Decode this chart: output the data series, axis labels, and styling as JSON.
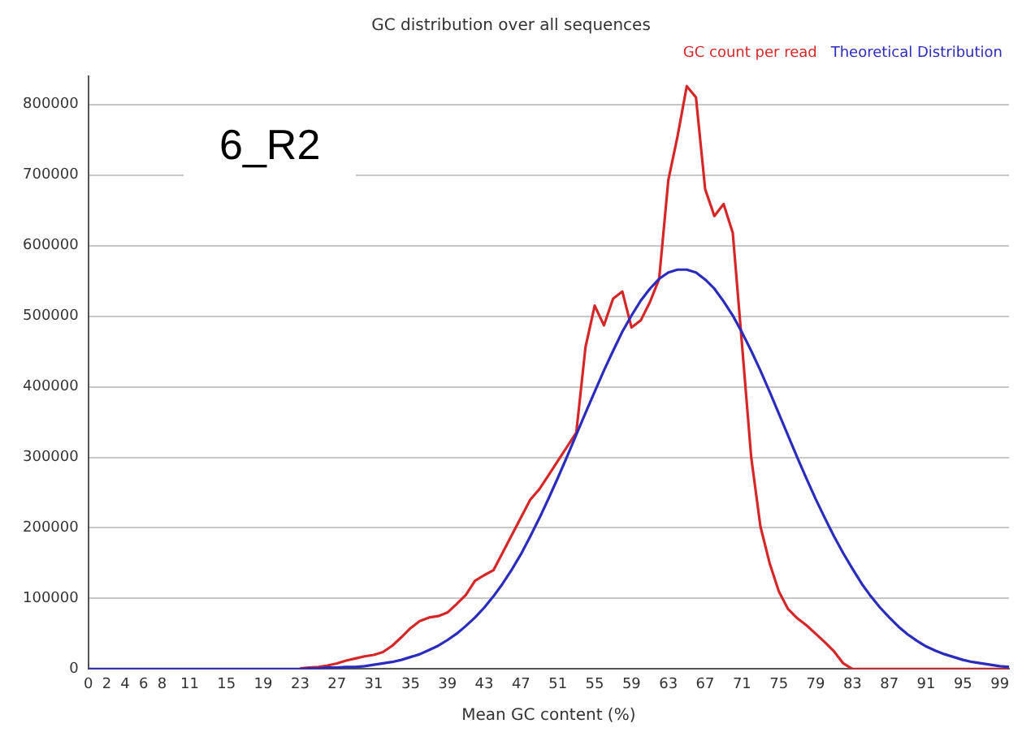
{
  "chart_data": {
    "type": "line",
    "title": "GC distribution over all sequences",
    "xlabel": "Mean GC content (%)",
    "categories": [
      "0",
      null,
      "2",
      null,
      "4",
      null,
      "6",
      null,
      "8",
      null,
      null,
      "11",
      null,
      null,
      null,
      "15",
      null,
      null,
      null,
      "19",
      null,
      null,
      null,
      "23",
      null,
      null,
      null,
      "27",
      null,
      null,
      null,
      "31",
      null,
      null,
      null,
      "35",
      null,
      null,
      null,
      "39",
      null,
      null,
      null,
      "43",
      null,
      null,
      null,
      "47",
      null,
      null,
      null,
      "51",
      null,
      null,
      null,
      "55",
      null,
      null,
      null,
      "59",
      null,
      null,
      null,
      "63",
      null,
      null,
      null,
      "67",
      null,
      null,
      null,
      "71",
      null,
      null,
      null,
      "75",
      null,
      null,
      null,
      "79",
      null,
      null,
      null,
      "83",
      null,
      null,
      null,
      "87",
      null,
      null,
      null,
      "91",
      null,
      null,
      null,
      "95",
      null,
      null,
      null,
      "99",
      null
    ],
    "series": [
      {
        "name": "GC count per read",
        "color": "#d62728",
        "values": [
          null,
          null,
          null,
          null,
          null,
          null,
          null,
          null,
          null,
          null,
          null,
          null,
          null,
          null,
          null,
          null,
          null,
          null,
          null,
          null,
          null,
          null,
          null,
          1000,
          2000,
          3000,
          5000,
          8000,
          12000,
          15000,
          18000,
          20000,
          24000,
          33000,
          45000,
          58000,
          68000,
          73000,
          75000,
          80000,
          92000,
          105000,
          125000,
          133000,
          140000,
          165000,
          190000,
          215000,
          240000,
          255000,
          275000,
          295000,
          315000,
          335000,
          456000,
          515000,
          487000,
          525000,
          535000,
          484000,
          494000,
          520000,
          553000,
          693000,
          755000,
          826000,
          810000,
          680000,
          642000,
          659000,
          618000,
          460000,
          300000,
          202000,
          150000,
          110000,
          85000,
          72000,
          62000,
          50000,
          38000,
          25000,
          8000,
          0,
          0,
          0,
          0,
          0,
          0,
          0,
          0,
          0,
          0,
          0,
          0,
          0,
          0,
          0,
          0,
          0,
          0
        ]
      },
      {
        "name": "Theoretical Distribution",
        "color": "#2b2bbd",
        "values": [
          0,
          0,
          0,
          0,
          0,
          0,
          0,
          0,
          0,
          0,
          0,
          0,
          0,
          0,
          0,
          0,
          0,
          0,
          0,
          0,
          0,
          0,
          0,
          0,
          1000,
          1000,
          2000,
          2000,
          3000,
          3000,
          4000,
          6000,
          8000,
          10000,
          13000,
          17000,
          21000,
          27000,
          33000,
          41000,
          50000,
          61000,
          73000,
          87000,
          103000,
          121000,
          141000,
          163000,
          188000,
          214000,
          242000,
          271000,
          301000,
          332000,
          363000,
          393000,
          423000,
          451000,
          478000,
          501000,
          522000,
          539000,
          553000,
          562000,
          566000,
          566000,
          562000,
          552000,
          539000,
          521000,
          501000,
          477000,
          451000,
          423000,
          393000,
          362000,
          331000,
          300000,
          270000,
          241000,
          214000,
          188000,
          164000,
          142000,
          121000,
          103000,
          87000,
          73000,
          60000,
          49000,
          40000,
          32000,
          26000,
          21000,
          17000,
          13000,
          10000,
          8000,
          6000,
          4000,
          3000
        ]
      }
    ],
    "ylim": [
      0,
      840000
    ],
    "yticks": [
      0,
      100000,
      200000,
      300000,
      400000,
      500000,
      600000,
      700000,
      800000
    ],
    "grid": "y",
    "legend": "top right",
    "marker": "none",
    "line_style": "solid",
    "annotations": [
      "6_R2"
    ]
  }
}
